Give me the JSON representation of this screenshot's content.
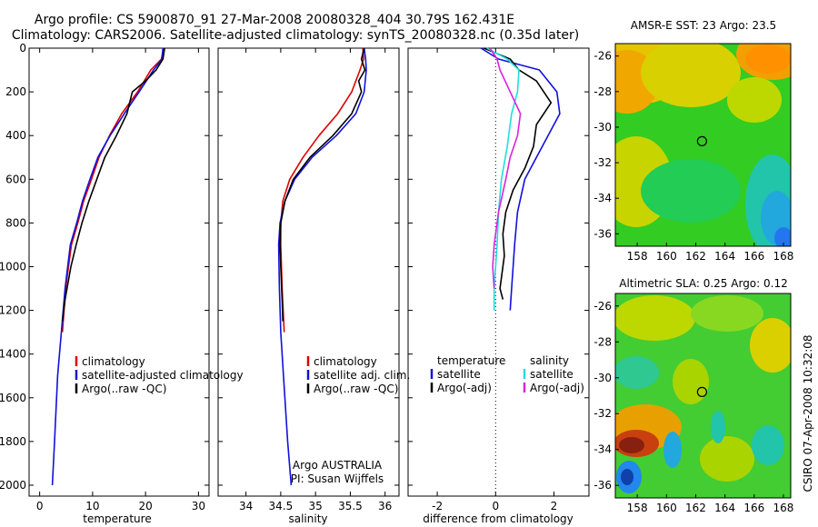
{
  "header": {
    "line1": "Argo profile: CS 5900870_91 27-Mar-2008 20080328_404 30.79S 162.431E",
    "line2": "Climatology: CARS2006. Satellite-adjusted climatology: synTS_20080328.nc (0.35d later)"
  },
  "credit": {
    "agency": "Argo AUSTRALIA",
    "pi": "PI: Susan Wijffels"
  },
  "stamp": "CSIRO 07-Apr-2008 10:32:08",
  "colors": {
    "climatology": "#dd0000",
    "satellite": "#1010dd",
    "argo": "#000000",
    "sat_salinity": "#22dddd",
    "argo_salinity": "#dd22dd"
  },
  "chart_data": [
    {
      "type": "line",
      "xlabel": "temperature",
      "xlim": [
        -2,
        32
      ],
      "ylim": [
        0,
        2050
      ],
      "xticks": [
        0,
        10,
        20,
        30
      ],
      "yticks": [
        0,
        200,
        400,
        600,
        800,
        1000,
        1200,
        1400,
        1600,
        1800,
        2000
      ],
      "legend": [
        "climatology",
        "satellite-adjusted climatology",
        "Argo(..raw -QC)"
      ],
      "series": [
        {
          "name": "climatology",
          "color": "#dd0000",
          "x": [
            23.4,
            23.0,
            21.0,
            18.5,
            15.5,
            13.2,
            11.2,
            9.8,
            8.3,
            7.2,
            6.0,
            4.9,
            4.3
          ],
          "y": [
            0,
            50,
            100,
            200,
            300,
            400,
            500,
            600,
            700,
            800,
            900,
            1100,
            1300
          ]
        },
        {
          "name": "satellite-adjusted climatology",
          "color": "#1010dd",
          "x": [
            23.3,
            23.1,
            21.5,
            18.8,
            16.0,
            13.3,
            11.0,
            9.5,
            8.1,
            7.0,
            5.8,
            4.8,
            4.1,
            3.4,
            2.8,
            2.4
          ],
          "y": [
            0,
            50,
            100,
            200,
            300,
            400,
            500,
            600,
            700,
            800,
            900,
            1100,
            1300,
            1500,
            1800,
            2000
          ]
        },
        {
          "name": "Argo(..raw -QC)",
          "color": "#000000",
          "x": [
            23.6,
            23.3,
            22.0,
            20.0,
            17.5,
            16.5,
            14.5,
            12.3,
            10.8,
            9.3,
            8.0,
            6.9,
            5.9,
            4.8,
            4.3
          ],
          "y": [
            0,
            50,
            100,
            150,
            200,
            300,
            400,
            500,
            600,
            700,
            800,
            900,
            1000,
            1150,
            1250
          ]
        }
      ]
    },
    {
      "type": "line",
      "xlabel": "salinity",
      "xlim": [
        33.6,
        36.2
      ],
      "ylim": [
        0,
        2050
      ],
      "xticks": [
        34,
        34.5,
        35,
        35.5,
        36
      ],
      "legend": [
        "climatology",
        "satellite adj. clim.",
        "Argo(..raw -QC)"
      ],
      "series": [
        {
          "name": "climatology",
          "color": "#dd0000",
          "x": [
            35.68,
            35.69,
            35.64,
            35.52,
            35.32,
            35.05,
            34.82,
            34.63,
            34.53,
            34.5,
            34.5,
            34.52,
            34.55
          ],
          "y": [
            0,
            50,
            100,
            200,
            300,
            400,
            500,
            600,
            700,
            800,
            900,
            1100,
            1300
          ]
        },
        {
          "name": "satellite adj. clim.",
          "color": "#1010dd",
          "x": [
            35.7,
            35.72,
            35.73,
            35.7,
            35.58,
            35.3,
            34.95,
            34.7,
            34.56,
            34.49,
            34.47,
            34.48,
            34.5,
            34.54,
            34.6,
            34.65
          ],
          "y": [
            0,
            50,
            100,
            200,
            300,
            400,
            500,
            600,
            700,
            800,
            900,
            1100,
            1300,
            1500,
            1800,
            2000
          ]
        },
        {
          "name": "Argo(..raw -QC)",
          "color": "#000000",
          "x": [
            35.7,
            35.66,
            35.71,
            35.62,
            35.66,
            35.52,
            35.25,
            34.92,
            34.68,
            34.56,
            34.5,
            34.49,
            34.5,
            34.52,
            34.53
          ],
          "y": [
            0,
            50,
            100,
            150,
            200,
            300,
            400,
            500,
            600,
            700,
            800,
            900,
            1000,
            1150,
            1250
          ]
        }
      ]
    },
    {
      "type": "line",
      "xlabel": "difference from climatology",
      "xlim": [
        -3,
        3.2
      ],
      "ylim": [
        0,
        2050
      ],
      "xticks": [
        -2,
        0,
        2
      ],
      "legend_titles": [
        "temperature",
        "salinity"
      ],
      "legend": [
        "satellite",
        "Argo(-adj)",
        "satellite",
        "Argo(-adj)"
      ],
      "series": [
        {
          "name": "satellite",
          "group": "temperature",
          "color": "#1010dd",
          "x": [
            -0.5,
            0.1,
            1.5,
            2.1,
            2.2,
            1.6,
            1.0,
            0.75,
            0.65,
            0.55,
            0.5
          ],
          "y": [
            0,
            50,
            100,
            200,
            300,
            450,
            600,
            750,
            900,
            1100,
            1200
          ]
        },
        {
          "name": "Argo(-adj)",
          "group": "temperature",
          "color": "#000000",
          "x": [
            -0.4,
            0.5,
            0.8,
            1.4,
            1.9,
            1.4,
            1.3,
            1.0,
            0.6,
            0.35,
            0.25,
            0.3,
            0.15,
            0.25
          ],
          "y": [
            0,
            50,
            100,
            150,
            250,
            350,
            450,
            550,
            650,
            750,
            850,
            950,
            1100,
            1150
          ]
        },
        {
          "name": "satellite",
          "group": "salinity",
          "color": "#22dddd",
          "x": [
            -0.3,
            0.4,
            0.8,
            0.75,
            0.55,
            0.4,
            0.2,
            0.1,
            0.05,
            -0.05,
            -0.05
          ],
          "y": [
            0,
            50,
            100,
            200,
            300,
            450,
            600,
            750,
            900,
            1100,
            1200
          ]
        },
        {
          "name": "Argo(-adj)",
          "group": "salinity",
          "color": "#dd22dd",
          "x": [
            -0.2,
            0.05,
            0.15,
            0.5,
            0.85,
            0.75,
            0.5,
            0.35,
            0.1,
            -0.05,
            -0.1,
            -0.05
          ],
          "y": [
            0,
            50,
            100,
            200,
            300,
            400,
            500,
            600,
            750,
            900,
            1000,
            1100
          ]
        }
      ]
    },
    {
      "type": "heatmap",
      "title": "AMSR-E SST: 23  Argo: 23.5",
      "xlim": [
        156.5,
        168.5
      ],
      "ylim": [
        -36.7,
        -25.3
      ],
      "xticks": [
        158,
        160,
        162,
        164,
        166,
        168
      ],
      "yticks": [
        -26,
        -28,
        -30,
        -32,
        -34,
        -36
      ],
      "marker": {
        "lon": 162.43,
        "lat": -30.79
      }
    },
    {
      "type": "heatmap",
      "title": "Altimetric SLA: 0.25  Argo: 0.12",
      "xlim": [
        156.5,
        168.5
      ],
      "ylim": [
        -36.7,
        -25.3
      ],
      "xticks": [
        158,
        160,
        162,
        164,
        166,
        168
      ],
      "yticks": [
        -26,
        -28,
        -30,
        -32,
        -34,
        -36
      ],
      "marker": {
        "lon": 162.43,
        "lat": -30.79
      }
    }
  ]
}
